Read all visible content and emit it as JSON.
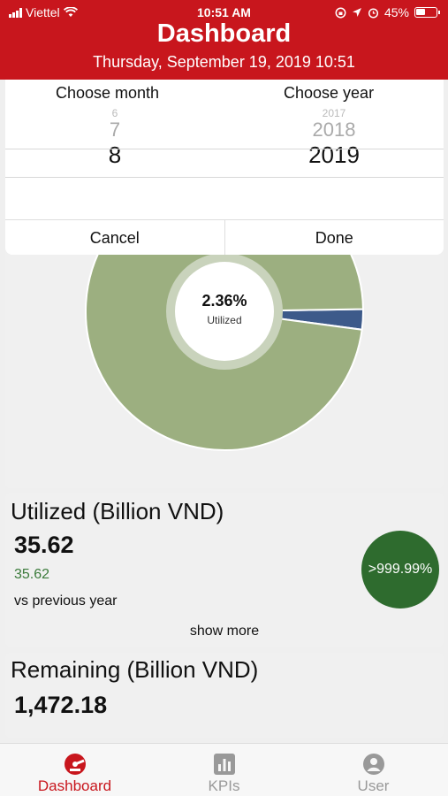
{
  "status_bar": {
    "carrier": "Viettel",
    "time": "10:51 AM",
    "battery": "45%"
  },
  "header": {
    "title": "Dashboard",
    "subtitle": "Thursday, September 19, 2019 10:51"
  },
  "picker": {
    "month_label": "Choose month",
    "year_label": "Choose year",
    "month_above2": "6",
    "month_above1": "7",
    "month_selected": "8",
    "year_above2": "2017",
    "year_above1": "2018",
    "year_selected": "2019",
    "cancel_label": "Cancel",
    "done_label": "Done"
  },
  "chart_data": {
    "type": "pie",
    "center_value": "2.36%",
    "center_label": "Utilized",
    "slices": [
      {
        "value": 2.36,
        "color": "#3d5a8a"
      },
      {
        "value": 97.64,
        "color": "#9caf80"
      }
    ]
  },
  "utilized": {
    "title": "Utilized (Billion VND)",
    "value": "35.62",
    "previous": "35.62",
    "vs_label": "vs previous year",
    "growth": ">999.99%",
    "show_more": "show more"
  },
  "remaining": {
    "title": "Remaining (Billion VND)",
    "value": "1,472.18"
  },
  "tabs": [
    {
      "label": "Dashboard",
      "icon": "dashboard-icon",
      "active": true
    },
    {
      "label": "KPIs",
      "icon": "bar-chart-icon",
      "active": false
    },
    {
      "label": "User",
      "icon": "user-icon",
      "active": false
    }
  ],
  "colors": {
    "brand": "#c8161d",
    "growth_badge": "#2e6b2e"
  }
}
